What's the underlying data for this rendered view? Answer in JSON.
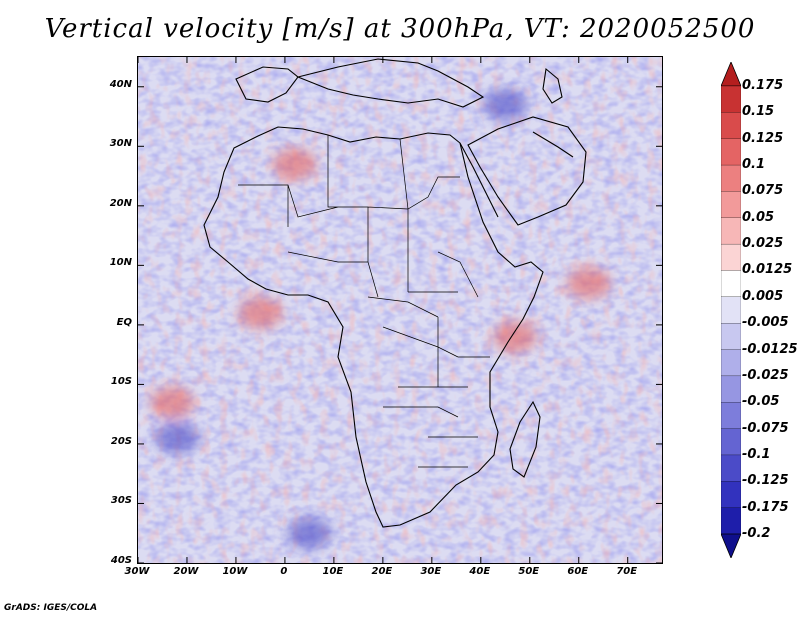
{
  "title": "Vertical velocity [m/s] at 300hPa, VT: 2020052500",
  "credit": "GrADS: IGES/COLA",
  "map": {
    "lat_range": [
      -40,
      45
    ],
    "lon_range": [
      -30,
      77
    ],
    "lat_labels": [
      "40N",
      "30N",
      "20N",
      "10N",
      "EQ",
      "10S",
      "20S",
      "30S",
      "40S"
    ],
    "lat_values": [
      40,
      30,
      20,
      10,
      0,
      -10,
      -20,
      -30,
      -40
    ],
    "lon_labels": [
      "30W",
      "20W",
      "10W",
      "0",
      "10E",
      "20E",
      "30E",
      "40E",
      "50E",
      "60E",
      "70E"
    ],
    "lon_values": [
      -30,
      -20,
      -10,
      0,
      10,
      20,
      30,
      40,
      50,
      60,
      70
    ],
    "background_color": "#e9e9f6"
  },
  "colorbar": {
    "labels": [
      "0.175",
      "0.15",
      "0.125",
      "0.1",
      "0.075",
      "0.05",
      "0.025",
      "0.0125",
      "0.005",
      "-0.005",
      "-0.0125",
      "-0.025",
      "-0.05",
      "-0.075",
      "-0.1",
      "-0.125",
      "-0.175",
      "-0.2"
    ],
    "colors": [
      "#b41e1e",
      "#c83232",
      "#d94b4b",
      "#e46464",
      "#ec8080",
      "#f29a9a",
      "#f7b7b7",
      "#fbd4d4",
      "#ffffff",
      "#e2e2f6",
      "#c8c8f0",
      "#afafea",
      "#9696e2",
      "#7d7ddb",
      "#6464d2",
      "#4b4bc8",
      "#3232be",
      "#1e1eaa",
      "#0f0f8c"
    ]
  },
  "features": [
    {
      "name": "equatorial-atlantic-updraft",
      "lon": -5,
      "lat": 2,
      "sign": 1
    },
    {
      "name": "somali-coast-updraft",
      "lon": 47,
      "lat": -2,
      "sign": 1
    },
    {
      "name": "arabian-sea-updraft",
      "lon": 62,
      "lat": 7,
      "sign": 1
    },
    {
      "name": "south-atlantic-updraft",
      "lon": -23,
      "lat": -13,
      "sign": 1
    },
    {
      "name": "south-atlantic-downdraft-vortex",
      "lon": -22,
      "lat": -19,
      "sign": -1
    },
    {
      "name": "southern-ocean-downdraft",
      "lon": 5,
      "lat": -35,
      "sign": -1
    },
    {
      "name": "sahara-updraft",
      "lon": 2,
      "lat": 27,
      "sign": 1
    },
    {
      "name": "iran-convection",
      "lon": 45,
      "lat": 37,
      "sign": -1
    }
  ]
}
